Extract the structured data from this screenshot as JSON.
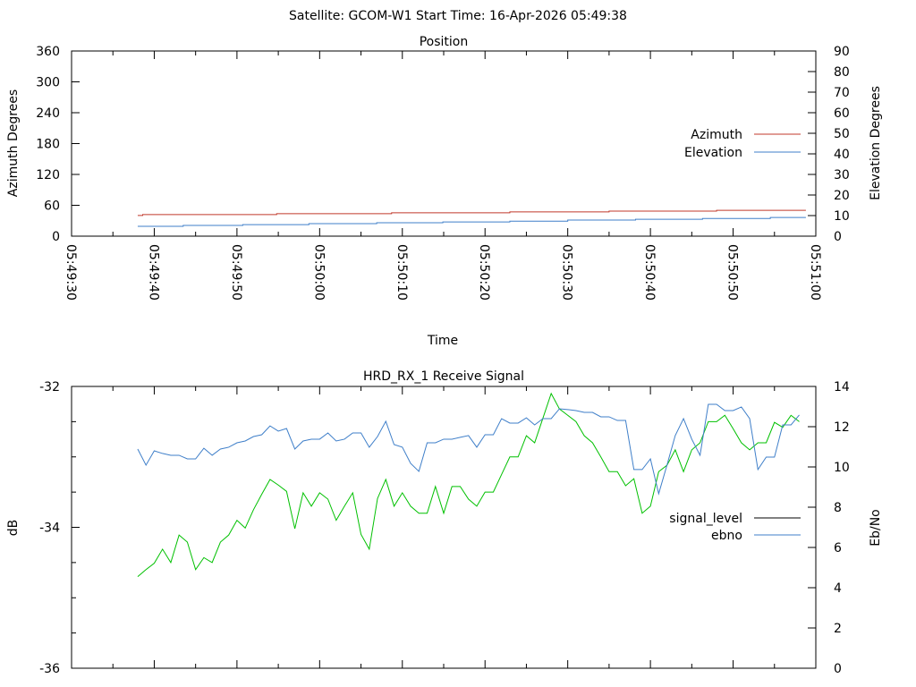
{
  "title": "Satellite: GCOM-W1    Start Time: 16-Apr-2026 05:49:38",
  "chart_data": [
    {
      "type": "line",
      "title": "Position",
      "xlabel": "Time",
      "ylabel": "Azimuth Degrees",
      "y2label": "Elevation Degrees",
      "x_origin": "05:49:30",
      "xlim_seconds": [
        0,
        90
      ],
      "xticks": [
        "05:49:30",
        "05:49:40",
        "05:49:50",
        "05:50:00",
        "05:50:10",
        "05:50:20",
        "05:50:30",
        "05:50:40",
        "05:50:50",
        "05:51:00"
      ],
      "ylim": [
        0,
        360
      ],
      "yticks": [
        "0",
        "60",
        "120",
        "180",
        "240",
        "300",
        "360"
      ],
      "y2lim": [
        0,
        90
      ],
      "y2ticks": [
        "0",
        "10",
        "20",
        "30",
        "40",
        "50",
        "60",
        "70",
        "80",
        "90"
      ],
      "legend_position": "right",
      "series": [
        {
          "name": "Azimuth",
          "axis": "y",
          "color": "#c0392b",
          "step": true,
          "points": [
            [
              8,
              40.3
            ],
            [
              8.6,
              41.9
            ],
            [
              24.8,
              43.7
            ],
            [
              38.7,
              45.4
            ],
            [
              53,
              47.1
            ],
            [
              65,
              48.7
            ],
            [
              78,
              50.3
            ],
            [
              88.8,
              50.3
            ]
          ]
        },
        {
          "name": "Elevation",
          "axis": "y2",
          "color": "#3f7fc9",
          "step": true,
          "points": [
            [
              8,
              4.8
            ],
            [
              13.5,
              5.2
            ],
            [
              20.7,
              5.6
            ],
            [
              28.7,
              6.1
            ],
            [
              36.9,
              6.5
            ],
            [
              44.9,
              6.9
            ],
            [
              53,
              7.3
            ],
            [
              60,
              7.8
            ],
            [
              68.2,
              8.2
            ],
            [
              76.3,
              8.6
            ],
            [
              84.5,
              9.1
            ],
            [
              88.8,
              9.1
            ]
          ]
        }
      ]
    },
    {
      "type": "line",
      "title": "HRD_RX_1 Receive Signal",
      "ylabel": "dB",
      "y2label": "Eb/No",
      "x_origin": "05:49:30",
      "xlim_seconds": [
        0,
        90
      ],
      "ylim": [
        -36,
        -32
      ],
      "yticks": [
        "-32",
        "-34",
        "-36"
      ],
      "y2lim": [
        0,
        14
      ],
      "y2ticks": [
        "0",
        "2",
        "4",
        "6",
        "8",
        "10",
        "12",
        "14"
      ],
      "legend_position": "right",
      "t_start": 8,
      "series": [
        {
          "name": "signal_level",
          "axis": "y",
          "color": "#00c000",
          "legend_color": "#000000",
          "values": [
            -34.7,
            -34.6,
            -34.51,
            -34.31,
            -34.5,
            -34.11,
            -34.21,
            -34.6,
            -34.43,
            -34.5,
            -34.21,
            -34.11,
            -33.9,
            -34.01,
            -33.75,
            -33.53,
            -33.32,
            -33.4,
            -33.49,
            -34.02,
            -33.51,
            -33.7,
            -33.51,
            -33.6,
            -33.9,
            -33.7,
            -33.51,
            -34.1,
            -34.31,
            -33.59,
            -33.32,
            -33.7,
            -33.51,
            -33.7,
            -33.8,
            -33.8,
            -33.42,
            -33.8,
            -33.42,
            -33.42,
            -33.6,
            -33.7,
            -33.5,
            -33.5,
            -33.25,
            -33.0,
            -33.0,
            -32.7,
            -32.8,
            -32.45,
            -32.1,
            -32.32,
            -32.41,
            -32.5,
            -32.7,
            -32.8,
            -33.0,
            -33.21,
            -33.21,
            -33.41,
            -33.31,
            -33.8,
            -33.7,
            -33.21,
            -33.12,
            -32.9,
            -33.21,
            -32.9,
            -32.8,
            -32.5,
            -32.5,
            -32.41,
            -32.6,
            -32.8,
            -32.9,
            -32.8,
            -32.8,
            -32.51,
            -32.58,
            -32.41,
            -32.5
          ]
        },
        {
          "name": "ebno",
          "axis": "y2",
          "color": "#3f7fc9",
          "legend_color": "#3f7fc9",
          "values": [
            10.89,
            10.09,
            10.8,
            10.67,
            10.58,
            10.58,
            10.4,
            10.4,
            10.93,
            10.58,
            10.89,
            10.98,
            11.2,
            11.29,
            11.51,
            11.6,
            12.04,
            11.78,
            11.91,
            10.89,
            11.29,
            11.38,
            11.38,
            11.69,
            11.29,
            11.38,
            11.69,
            11.69,
            10.98,
            11.51,
            12.27,
            11.11,
            10.98,
            10.18,
            9.78,
            11.2,
            11.2,
            11.38,
            11.38,
            11.47,
            11.56,
            10.98,
            11.6,
            11.6,
            12.4,
            12.18,
            12.18,
            12.44,
            12.09,
            12.4,
            12.4,
            12.89,
            12.85,
            12.8,
            12.71,
            12.71,
            12.49,
            12.49,
            12.31,
            12.31,
            9.87,
            9.87,
            10.4,
            8.67,
            10.09,
            11.56,
            12.4,
            11.38,
            10.58,
            13.11,
            13.11,
            12.8,
            12.8,
            12.98,
            12.4,
            9.87,
            10.49,
            10.49,
            12.09,
            12.09,
            12.58
          ]
        }
      ]
    }
  ]
}
